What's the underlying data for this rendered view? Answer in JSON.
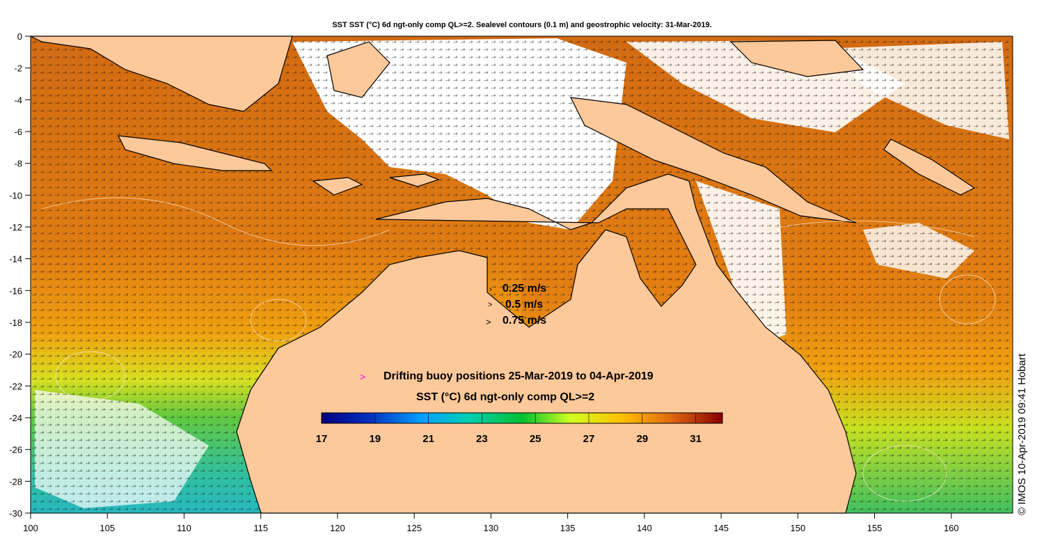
{
  "title": "SST SST (°C) 6d ngt-only comp QL>=2. Sealevel contours (0.1 m) and geostrophic velocity: 31-Mar-2019.",
  "axes": {
    "y_ticks": [
      "0",
      "-2",
      "-4",
      "-6",
      "-8",
      "-10",
      "-12",
      "-14",
      "-16",
      "-18",
      "-20",
      "-22",
      "-24",
      "-26",
      "-28",
      "-30"
    ],
    "x_ticks": [
      "100",
      "105",
      "110",
      "115",
      "120",
      "125",
      "130",
      "135",
      "140",
      "145",
      "150",
      "155",
      "160"
    ],
    "lat_range": [
      -30,
      0
    ],
    "lon_range": [
      100,
      164
    ]
  },
  "velocity_legend": [
    {
      "label": "0.25 m/s"
    },
    {
      "label": "0.5 m/s"
    },
    {
      "label": "0.75 m/s"
    }
  ],
  "buoy_legend": {
    "marker": ">",
    "label": "Drifting buoy positions 25-Mar-2019 to 04-Apr-2019",
    "color": "#ff00ff"
  },
  "colorbar": {
    "title": "SST (°C) 6d ngt-only comp QL>=2",
    "tick_labels": [
      "17",
      "19",
      "21",
      "23",
      "25",
      "27",
      "29",
      "31"
    ],
    "range": [
      17,
      32
    ]
  },
  "credit": "© IMOS 10-Apr-2019 09:41 Hobart",
  "colors": {
    "land": "#fdc89a",
    "sea_warm": "#d86a10",
    "sea_mid": "#e88a10",
    "sea_cool": "#8ad23a",
    "sea_cold": "#30c0a0",
    "cloud": "#ffffff"
  }
}
